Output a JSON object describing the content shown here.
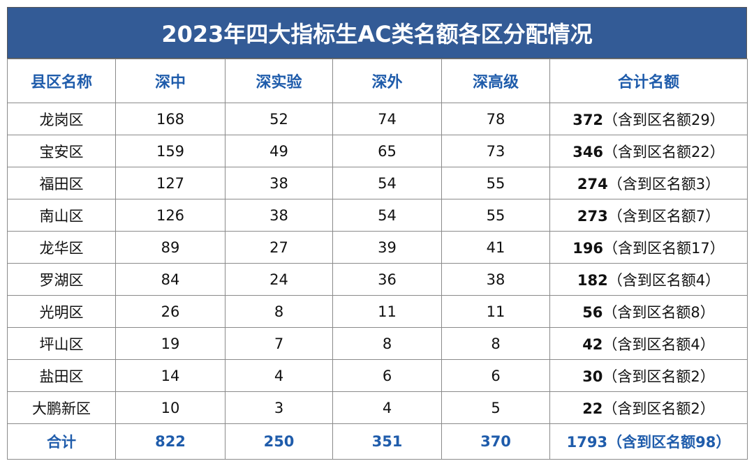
{
  "title": "2023年四大指标生AC类名额各区分配情况",
  "table": {
    "header": [
      "县区名称",
      "深中",
      "深实验",
      "深外",
      "深高级",
      "合计名额"
    ],
    "rows": [
      [
        "龙岗区",
        168,
        52,
        74,
        78,
        372,
        "（含到区名额29）"
      ],
      [
        "宝安区",
        159,
        49,
        65,
        73,
        346,
        "（含到区名额22）"
      ],
      [
        "福田区",
        127,
        38,
        54,
        55,
        274,
        "（含到区名额3）"
      ],
      [
        "南山区",
        126,
        38,
        54,
        55,
        273,
        "（含到区名额7）"
      ],
      [
        "龙华区",
        89,
        27,
        39,
        41,
        196,
        "（含到区名额17）"
      ],
      [
        "罗湖区",
        84,
        24,
        36,
        38,
        182,
        "（含到区名额4）"
      ],
      [
        "光明区",
        26,
        8,
        11,
        11,
        56,
        "（含到区名额8）"
      ],
      [
        "坪山区",
        19,
        7,
        8,
        8,
        42,
        "（含到区名额4）"
      ],
      [
        "盐田区",
        14,
        4,
        6,
        6,
        30,
        "（含到区名额2）"
      ],
      [
        "大鹏新区",
        10,
        3,
        4,
        5,
        22,
        "（含到区名额2）"
      ]
    ],
    "footer": [
      "合计",
      822,
      250,
      351,
      370,
      1793,
      "（含到区名额98）"
    ]
  }
}
